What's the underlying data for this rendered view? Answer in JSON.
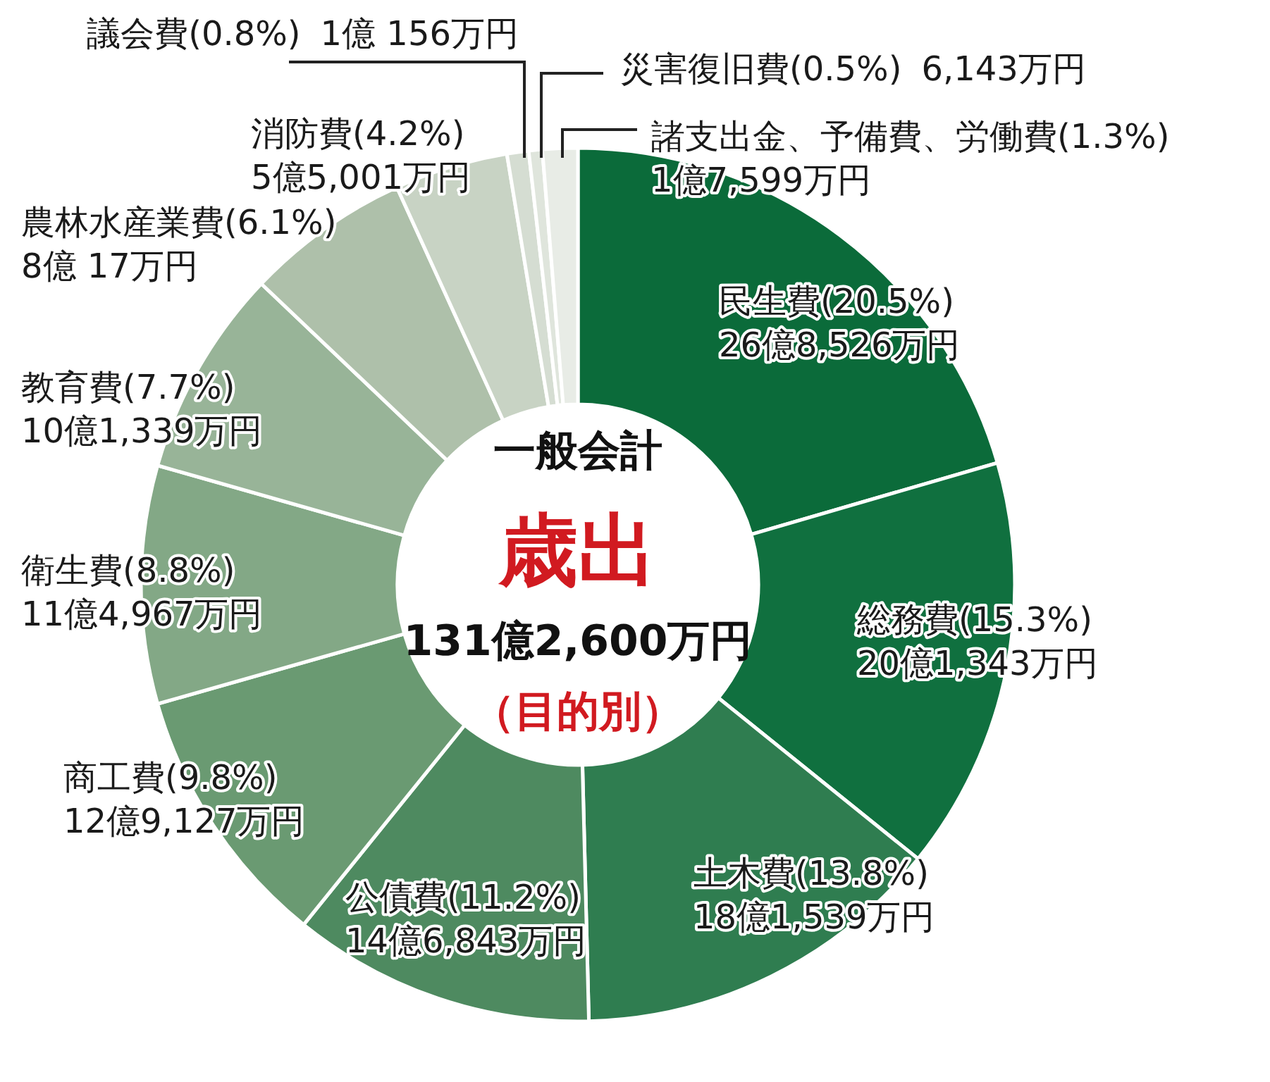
{
  "chart_data": {
    "type": "donut",
    "title": "一般会計",
    "subtitle": "歳出",
    "annotations": [
      "131億2,600万円",
      "（目的別）",
      "26億8,526万円",
      "20億1,343万円",
      "18億1,539万円",
      "14億6,843万円",
      "12億9,127万円",
      "11億4,967万円",
      "10億1,339万円",
      "8億 17万円",
      "5億5,001万円",
      "1億 156万円",
      "6,143万円",
      "1億7,599万円"
    ],
    "categories": [
      "民生費",
      "総務費",
      "土木費",
      "公債費",
      "商工費",
      "衛生費",
      "教育費",
      "農林水産業費",
      "消防費",
      "議会費",
      "災害復旧費",
      "諸支出金、予備費、労働費"
    ],
    "values": [
      20.5,
      15.3,
      13.8,
      11.2,
      9.8,
      8.8,
      7.7,
      6.1,
      4.2,
      0.8,
      0.5,
      1.3
    ],
    "value_labels": [
      "(20.5%)",
      "(15.3%)",
      "(13.8%)",
      "(11.2%)",
      "(9.8%)",
      "(8.8%)",
      "(7.7%)",
      "(6.1%)",
      "(4.2%)",
      "(0.8%)",
      "(0.5%)",
      "(1.3%)"
    ],
    "colors": [
      "#0b6b3a",
      "#10703f",
      "#2f7d50",
      "#4e8a60",
      "#6a9a72",
      "#83a886",
      "#98b498",
      "#aec0aa",
      "#c8d3c4",
      "#d5ddd2",
      "#dfe5dc",
      "#e8ece6"
    ]
  }
}
